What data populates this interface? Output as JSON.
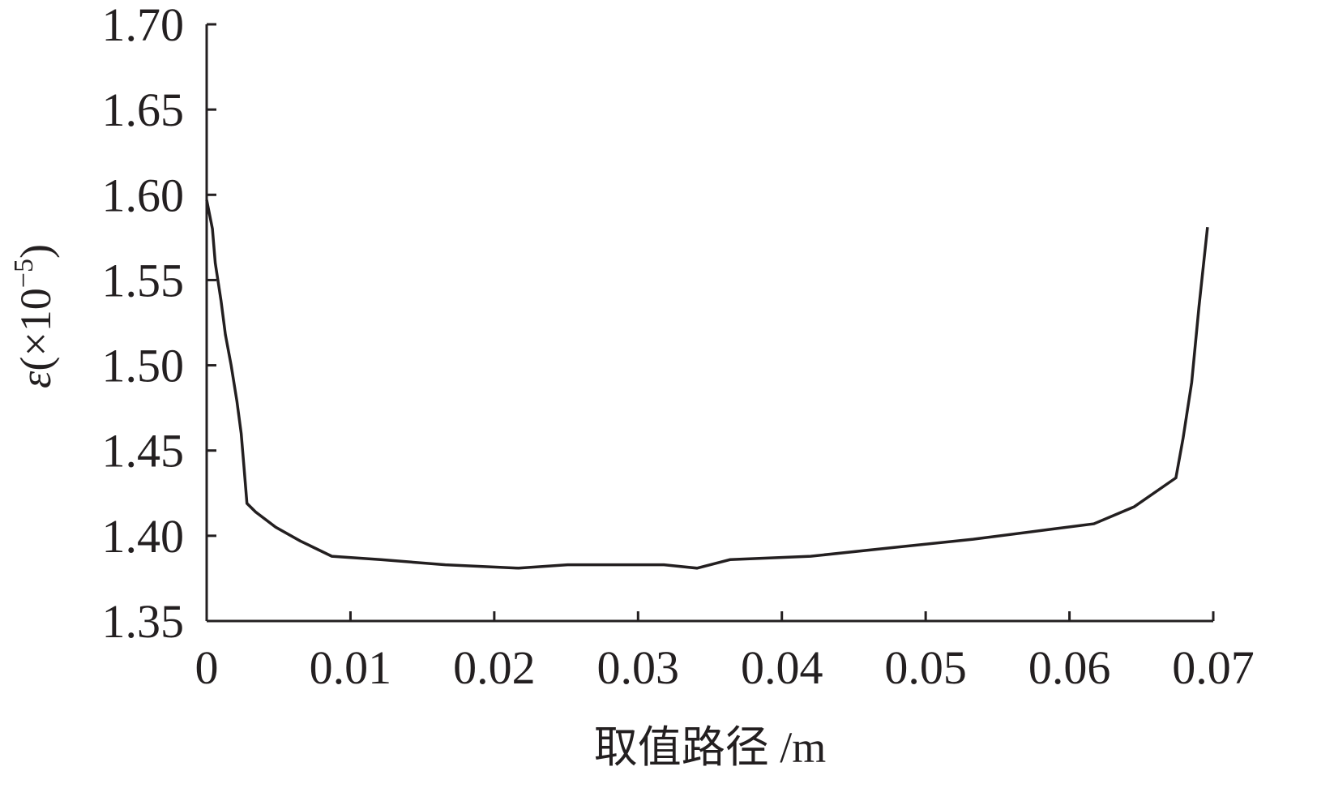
{
  "chart_data": {
    "type": "line",
    "title": "",
    "xlabel": "取值路径 /m",
    "ylabel": "ε(×10⁻⁵)",
    "ylabel_parts": {
      "symbol": "ε",
      "unit": "(×10",
      "exp": "−5",
      "close": ")"
    },
    "xlim": [
      0,
      0.07
    ],
    "ylim": [
      1.35,
      1.7
    ],
    "x_ticks": [
      "0",
      "0.01",
      "0.02",
      "0.03",
      "0.04",
      "0.05",
      "0.06",
      "0.07"
    ],
    "y_ticks": [
      "1.35",
      "1.40",
      "1.45",
      "1.50",
      "1.55",
      "1.60",
      "1.65",
      "1.70"
    ],
    "grid": false,
    "line_color": "#231f20",
    "series": [
      {
        "x": [
          0,
          0.0004,
          0.0006,
          0.001,
          0.0013,
          0.0017,
          0.0021,
          0.0024,
          0.0026,
          0.0028,
          0.0034,
          0.0048,
          0.0065,
          0.0087,
          0.0121,
          0.0166,
          0.0217,
          0.0251,
          0.0318,
          0.0341,
          0.0364,
          0.042,
          0.0476,
          0.0533,
          0.0589,
          0.0617,
          0.0645,
          0.0674,
          0.0679,
          0.0685,
          0.069,
          0.0696
        ],
        "y": [
          1.597,
          1.58,
          1.56,
          1.538,
          1.518,
          1.5,
          1.479,
          1.46,
          1.44,
          1.419,
          1.414,
          1.405,
          1.397,
          1.388,
          1.386,
          1.383,
          1.381,
          1.383,
          1.383,
          1.381,
          1.386,
          1.388,
          1.393,
          1.398,
          1.404,
          1.407,
          1.417,
          1.434,
          1.457,
          1.49,
          1.534,
          1.581
        ]
      }
    ]
  }
}
